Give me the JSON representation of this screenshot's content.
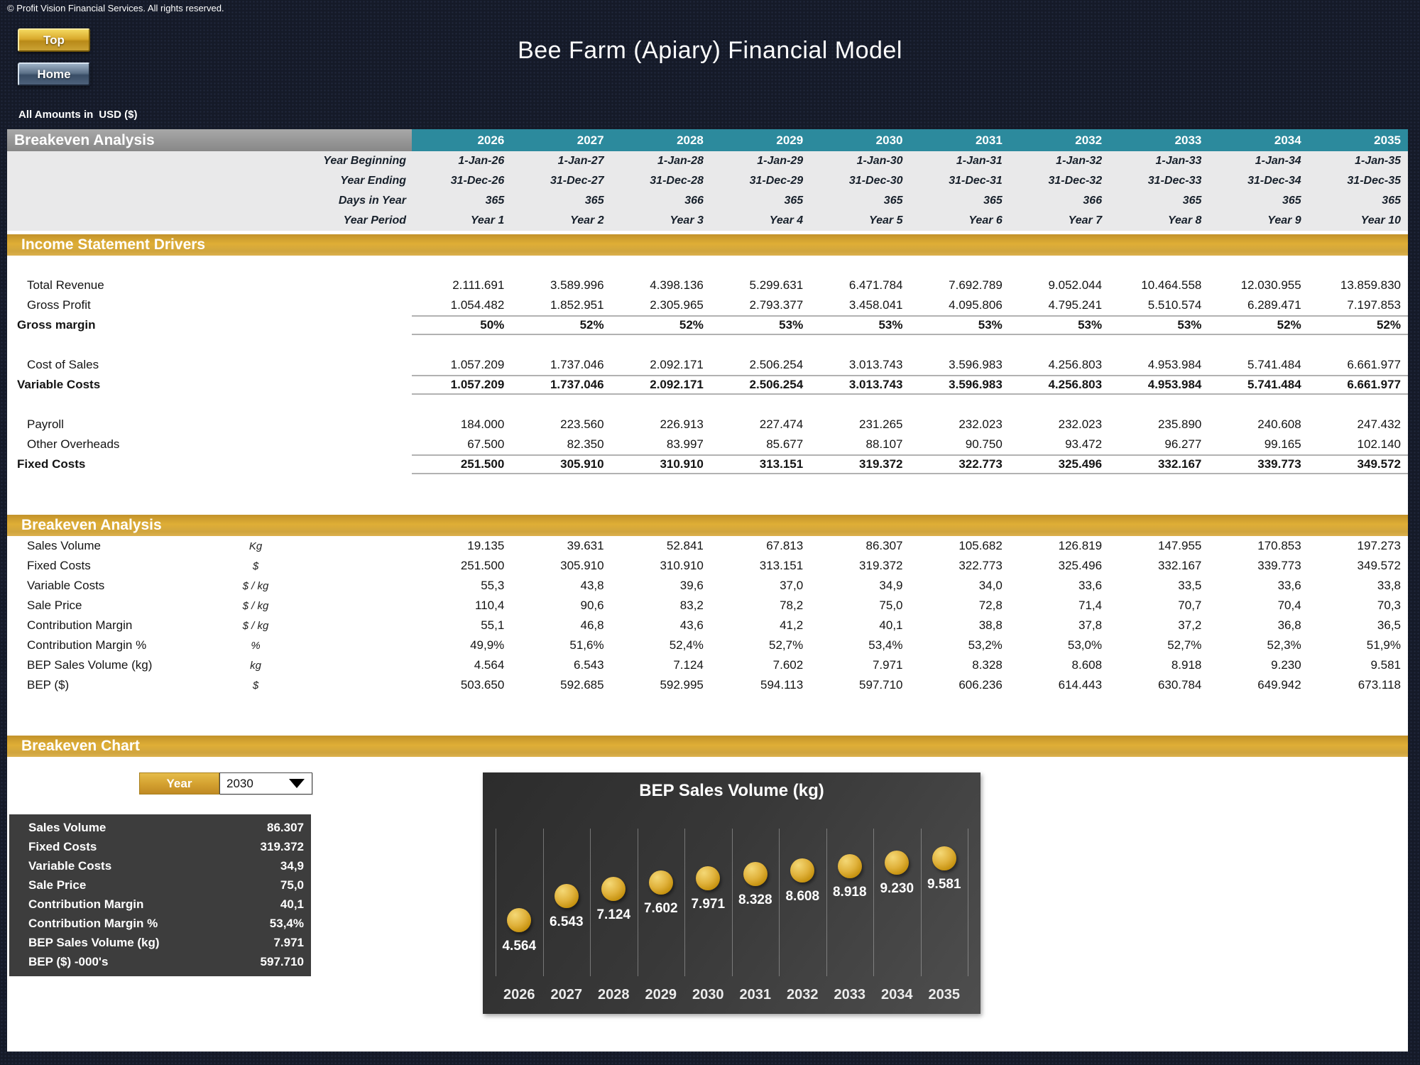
{
  "page": {
    "copyright": "© Profit Vision Financial Services. All rights reserved.",
    "title": "Bee Farm (Apiary) Financial Model",
    "amounts_note": "All Amounts in",
    "currency": "USD ($)"
  },
  "buttons": {
    "top": "Top",
    "home": "Home"
  },
  "table": {
    "section_title": "Breakeven Analysis",
    "years": [
      "2026",
      "2027",
      "2028",
      "2029",
      "2030",
      "2031",
      "2032",
      "2033",
      "2034",
      "2035"
    ],
    "header_rows": [
      {
        "label": "Year Beginning",
        "values": [
          "1-Jan-26",
          "1-Jan-27",
          "1-Jan-28",
          "1-Jan-29",
          "1-Jan-30",
          "1-Jan-31",
          "1-Jan-32",
          "1-Jan-33",
          "1-Jan-34",
          "1-Jan-35"
        ]
      },
      {
        "label": "Year Ending",
        "values": [
          "31-Dec-26",
          "31-Dec-27",
          "31-Dec-28",
          "31-Dec-29",
          "31-Dec-30",
          "31-Dec-31",
          "31-Dec-32",
          "31-Dec-33",
          "31-Dec-34",
          "31-Dec-35"
        ]
      },
      {
        "label": "Days in Year",
        "values": [
          "365",
          "365",
          "366",
          "365",
          "365",
          "365",
          "366",
          "365",
          "365",
          "365"
        ]
      },
      {
        "label": "Year Period",
        "values": [
          "Year 1",
          "Year 2",
          "Year 3",
          "Year 4",
          "Year 5",
          "Year 6",
          "Year 7",
          "Year 8",
          "Year 9",
          "Year 10"
        ]
      }
    ],
    "income_section": {
      "title": "Income Statement Drivers",
      "rows": [
        {
          "label": "Total Revenue",
          "style": "normal",
          "values": [
            "2.111.691",
            "3.589.996",
            "4.398.136",
            "5.299.631",
            "6.471.784",
            "7.692.789",
            "9.052.044",
            "10.464.558",
            "12.030.955",
            "13.859.830"
          ]
        },
        {
          "label": "Gross Profit",
          "style": "normal",
          "values": [
            "1.054.482",
            "1.852.951",
            "2.305.965",
            "2.793.377",
            "3.458.041",
            "4.095.806",
            "4.795.241",
            "5.510.574",
            "6.289.471",
            "7.197.853"
          ]
        },
        {
          "label": "Gross margin",
          "style": "total",
          "values": [
            "50%",
            "52%",
            "52%",
            "53%",
            "53%",
            "53%",
            "53%",
            "53%",
            "52%",
            "52%"
          ]
        },
        {
          "style": "gap"
        },
        {
          "label": "Cost of Sales",
          "style": "normal",
          "values": [
            "1.057.209",
            "1.737.046",
            "2.092.171",
            "2.506.254",
            "3.013.743",
            "3.596.983",
            "4.256.803",
            "4.953.984",
            "5.741.484",
            "6.661.977"
          ]
        },
        {
          "label": "Variable Costs",
          "style": "total",
          "values": [
            "1.057.209",
            "1.737.046",
            "2.092.171",
            "2.506.254",
            "3.013.743",
            "3.596.983",
            "4.256.803",
            "4.953.984",
            "5.741.484",
            "6.661.977"
          ]
        },
        {
          "style": "gap"
        },
        {
          "label": "Payroll",
          "style": "normal",
          "values": [
            "184.000",
            "223.560",
            "226.913",
            "227.474",
            "231.265",
            "232.023",
            "232.023",
            "235.890",
            "240.608",
            "247.432"
          ]
        },
        {
          "label": "Other Overheads",
          "style": "normal",
          "values": [
            "67.500",
            "82.350",
            "83.997",
            "85.677",
            "88.107",
            "90.750",
            "93.472",
            "96.277",
            "99.165",
            "102.140"
          ]
        },
        {
          "label": "Fixed Costs",
          "style": "total",
          "values": [
            "251.500",
            "305.910",
            "310.910",
            "313.151",
            "319.372",
            "322.773",
            "325.496",
            "332.167",
            "339.773",
            "349.572"
          ]
        }
      ]
    },
    "breakeven_section": {
      "title": "Breakeven Analysis",
      "rows": [
        {
          "label": "Sales Volume",
          "unit": "Kg",
          "values": [
            "19.135",
            "39.631",
            "52.841",
            "67.813",
            "86.307",
            "105.682",
            "126.819",
            "147.955",
            "170.853",
            "197.273"
          ]
        },
        {
          "label": "Fixed Costs",
          "unit": "$",
          "values": [
            "251.500",
            "305.910",
            "310.910",
            "313.151",
            "319.372",
            "322.773",
            "325.496",
            "332.167",
            "339.773",
            "349.572"
          ]
        },
        {
          "label": "Variable Costs",
          "unit": "$ / kg",
          "values": [
            "55,3",
            "43,8",
            "39,6",
            "37,0",
            "34,9",
            "34,0",
            "33,6",
            "33,5",
            "33,6",
            "33,8"
          ]
        },
        {
          "label": "Sale Price",
          "unit": "$ / kg",
          "values": [
            "110,4",
            "90,6",
            "83,2",
            "78,2",
            "75,0",
            "72,8",
            "71,4",
            "70,7",
            "70,4",
            "70,3"
          ]
        },
        {
          "label": "Contribution Margin",
          "unit": "$ / kg",
          "values": [
            "55,1",
            "46,8",
            "43,6",
            "41,2",
            "40,1",
            "38,8",
            "37,8",
            "37,2",
            "36,8",
            "36,5"
          ]
        },
        {
          "label": "Contribution Margin %",
          "unit": "%",
          "values": [
            "49,9%",
            "51,6%",
            "52,4%",
            "52,7%",
            "53,4%",
            "53,2%",
            "53,0%",
            "52,7%",
            "52,3%",
            "51,9%"
          ]
        },
        {
          "label": "BEP Sales Volume (kg)",
          "unit": "kg",
          "values": [
            "4.564",
            "6.543",
            "7.124",
            "7.602",
            "7.971",
            "8.328",
            "8.608",
            "8.918",
            "9.230",
            "9.581"
          ]
        },
        {
          "label": "BEP ($)",
          "unit": "$",
          "values": [
            "503.650",
            "592.685",
            "592.995",
            "594.113",
            "597.710",
            "606.236",
            "614.443",
            "630.784",
            "649.942",
            "673.118"
          ]
        }
      ]
    }
  },
  "chart_panel": {
    "section_title": "Breakeven Chart",
    "year_button_label": "Year",
    "year_selected": "2030",
    "summary_rows": [
      {
        "label": "Sales Volume",
        "value": "86.307"
      },
      {
        "label": "Fixed Costs",
        "value": "319.372"
      },
      {
        "label": "Variable Costs",
        "value": "34,9"
      },
      {
        "label": "Sale Price",
        "value": "75,0"
      },
      {
        "label": "Contribution Margin",
        "value": "40,1"
      },
      {
        "label": "Contribution Margin %",
        "value": "53,4%"
      },
      {
        "label": "BEP Sales Volume (kg)",
        "value": "7.971"
      },
      {
        "label": "BEP ($) -000's",
        "value": "597.710"
      }
    ]
  },
  "chart_data": {
    "type": "scatter",
    "title": "BEP Sales Volume (kg)",
    "categories": [
      "2026",
      "2027",
      "2028",
      "2029",
      "2030",
      "2031",
      "2032",
      "2033",
      "2034",
      "2035"
    ],
    "values": [
      4564,
      6543,
      7124,
      7602,
      7971,
      8328,
      8608,
      8918,
      9230,
      9581
    ],
    "labels": [
      "4.564",
      "6.543",
      "7.124",
      "7.602",
      "7.971",
      "8.328",
      "8.608",
      "8.918",
      "9.230",
      "9.581"
    ],
    "xlabel": "",
    "ylabel": "",
    "ylim": [
      0,
      12000
    ],
    "grid": "vertical",
    "legend": "none",
    "marker_color": "#d9a62e",
    "background": "#3a3a3a"
  },
  "colors": {
    "accent_gold": "#d3a02f",
    "accent_teal": "#2c8a9d",
    "header_gray": "#8f8f8f",
    "panel_dark": "#3d3d3d",
    "page_navy": "#151a28"
  }
}
